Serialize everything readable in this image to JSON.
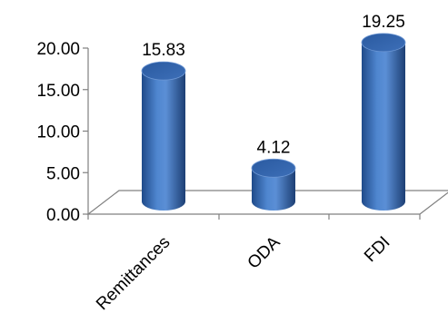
{
  "chart_data": {
    "type": "bar",
    "style": "3d-cylinder",
    "categories": [
      "Remittances",
      "ODA",
      "FDI"
    ],
    "values": [
      15.83,
      4.12,
      19.25
    ],
    "data_labels": [
      "15.83",
      "4.12",
      "19.25"
    ],
    "title": "",
    "xlabel": "",
    "ylabel": "",
    "ylim": [
      0,
      20
    ],
    "yticks": [
      "0.00",
      "5.00",
      "10.00",
      "15.00",
      "20.00"
    ],
    "grid": false,
    "legend": "none",
    "colors": {
      "bar": "#3c6fb5",
      "bar_dark": "#1f3f73",
      "bar_light": "#8fb3e3",
      "axis": "#808080"
    }
  }
}
